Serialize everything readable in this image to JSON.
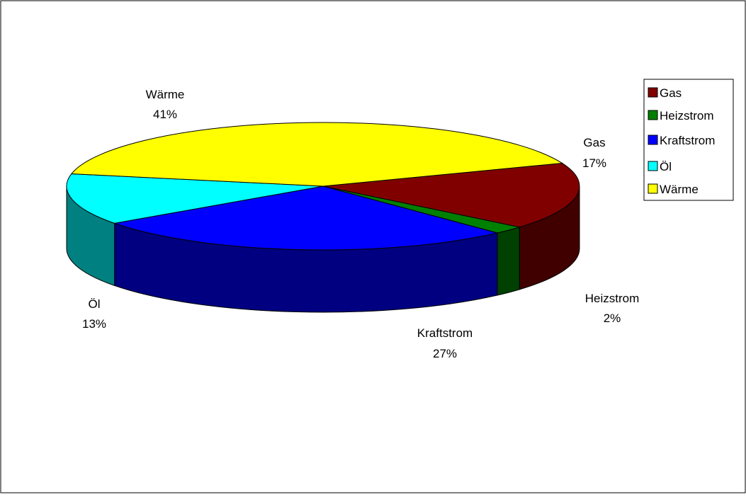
{
  "chart_data": {
    "type": "pie",
    "variant": "3d",
    "categories": [
      "Gas",
      "Heizstrom",
      "Kraftstrom",
      "Öl",
      "Wärme"
    ],
    "values": [
      17,
      2,
      27,
      13,
      41
    ],
    "value_labels": [
      "17%",
      "2%",
      "27%",
      "13%",
      "41%"
    ],
    "colors": [
      "#800000",
      "#008000",
      "#0000ff",
      "#00ffff",
      "#ffff00"
    ],
    "side_colors": [
      "#400000",
      "#004000",
      "#000080",
      "#008080",
      "#808000"
    ],
    "legend": {
      "position": "right",
      "entries": [
        "Gas",
        "Heizstrom",
        "Kraftstrom",
        "Öl",
        "Wärme"
      ]
    }
  }
}
